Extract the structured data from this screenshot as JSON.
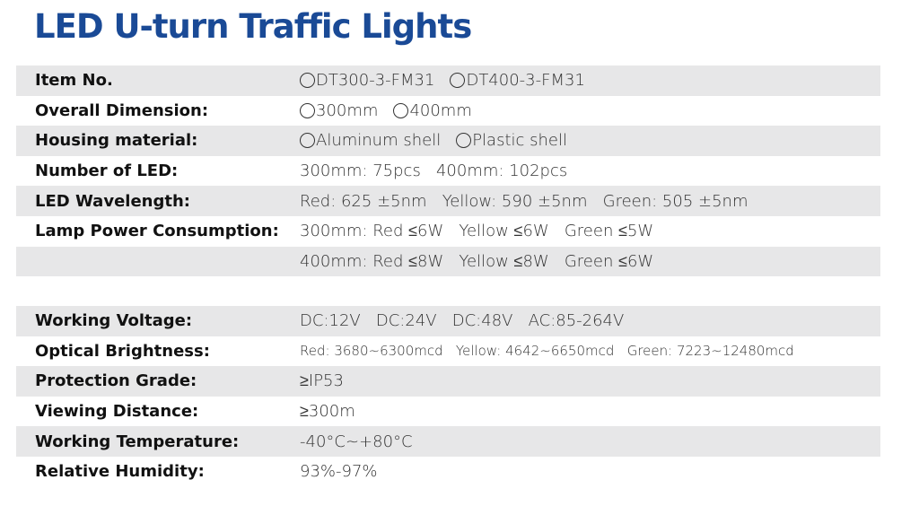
{
  "title": "LED U-turn Traffic Lights",
  "rows1": [
    {
      "label": "Item No.",
      "options": [
        "DT300-3-FM31",
        "DT400-3-FM31"
      ]
    },
    {
      "label": "Overall Dimension:",
      "options": [
        "300mm",
        "400mm"
      ]
    },
    {
      "label": "Housing material:",
      "options": [
        "Aluminum shell",
        "Plastic shell"
      ]
    },
    {
      "label": "Number of LED:",
      "value": "300mm: 75pcs   400mm: 102pcs"
    },
    {
      "label": "LED Wavelength:",
      "value": "Red: 625 ±5nm   Yellow: 590 ±5nm   Green: 505 ±5nm"
    },
    {
      "label": "Lamp Power Consumption:",
      "value": "300mm: Red ≤6W   Yellow ≤6W   Green ≤5W"
    },
    {
      "label": "",
      "value": "400mm: Red ≤8W   Yellow ≤8W   Green ≤6W"
    }
  ],
  "rows2": [
    {
      "label": "Working Voltage:",
      "value": "DC:12V   DC:24V   DC:48V   AC:85-264V"
    },
    {
      "label": "Optical Brightness:",
      "value": "Red: 3680~6300mcd   Yellow: 4642~6650mcd   Green: 7223~12480mcd"
    },
    {
      "label": "Protection Grade:",
      "value": "≥IP53"
    },
    {
      "label": "Viewing Distance:",
      "value": "≥300m"
    },
    {
      "label": "Working Temperature:",
      "value": "-40°C~+80°C"
    },
    {
      "label": "Relative Humidity:",
      "value": "93%-97%"
    }
  ]
}
